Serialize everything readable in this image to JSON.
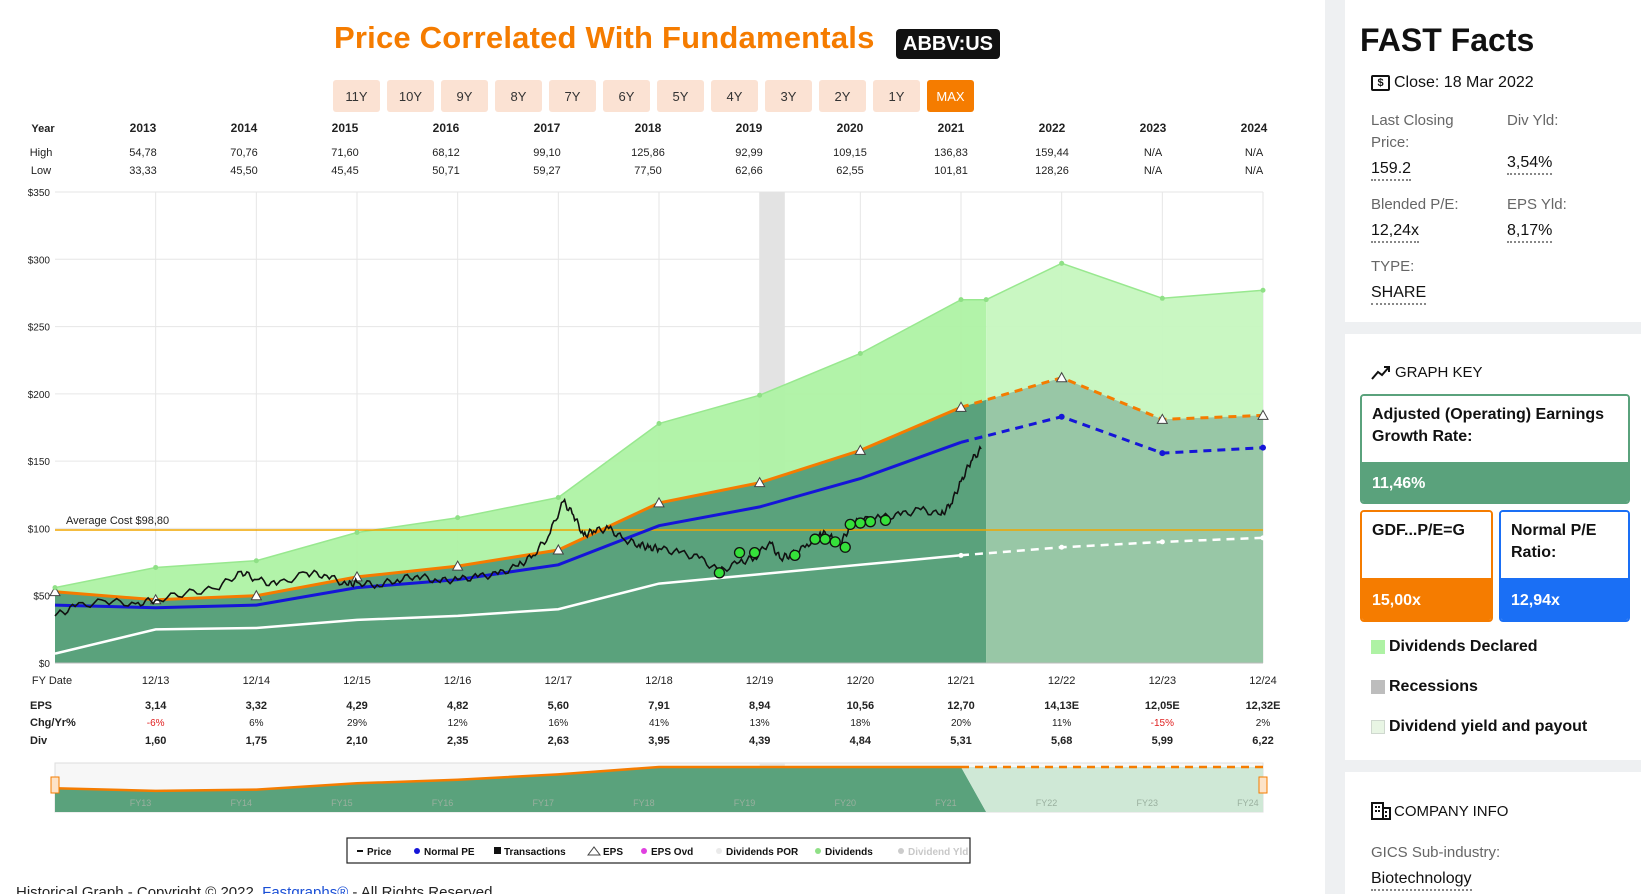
{
  "main": {
    "title": "Price Correlated With Fundamentals",
    "ticker": "ABBV:US",
    "ranges": [
      "11Y",
      "10Y",
      "9Y",
      "8Y",
      "7Y",
      "6Y",
      "5Y",
      "4Y",
      "3Y",
      "2Y",
      "1Y",
      "MAX"
    ],
    "active_range": "MAX",
    "average_cost_label": "Average Cost $98,80",
    "copyright_prefix": "Historical Graph - Copyright © 2022, ",
    "copyright_link": "Fastgraphs®",
    "copyright_suffix": " - All Rights Reserved"
  },
  "chart_data": {
    "type": "area",
    "row_labels": {
      "year": "Year",
      "high": "High",
      "low": "Low",
      "fy": "FY Date",
      "eps": "EPS",
      "chg": "Chg/Yr%",
      "div": "Div"
    },
    "years": [
      "2013",
      "2014",
      "2015",
      "2016",
      "2017",
      "2018",
      "2019",
      "2020",
      "2021",
      "2022",
      "2023",
      "2024"
    ],
    "high": [
      "54,78",
      "70,76",
      "71,60",
      "68,12",
      "99,10",
      "125,86",
      "92,99",
      "109,15",
      "136,83",
      "159,44",
      "N/A",
      "N/A"
    ],
    "low": [
      "33,33",
      "45,50",
      "45,45",
      "50,71",
      "59,27",
      "77,50",
      "62,66",
      "62,55",
      "101,81",
      "128,26",
      "N/A",
      "N/A"
    ],
    "fy_dates": [
      "12/13",
      "12/14",
      "12/15",
      "12/16",
      "12/17",
      "12/18",
      "12/19",
      "12/20",
      "12/21",
      "12/22",
      "12/23",
      "12/24"
    ],
    "eps": [
      "3,14",
      "3,32",
      "4,29",
      "4,82",
      "5,60",
      "7,91",
      "8,94",
      "10,56",
      "12,70",
      "14,13E",
      "12,05E",
      "12,32E"
    ],
    "chg_yr": [
      "-6%",
      "6%",
      "29%",
      "12%",
      "16%",
      "41%",
      "13%",
      "18%",
      "20%",
      "11%",
      "-15%",
      "2%"
    ],
    "div": [
      "1,60",
      "1,75",
      "2,10",
      "2,35",
      "2,63",
      "3,95",
      "4,39",
      "4,84",
      "5,31",
      "5,68",
      "5,99",
      "6,22"
    ],
    "y_ticks": [
      "$0",
      "$50",
      "$100",
      "$150",
      "$200",
      "$250",
      "$300",
      "$350"
    ],
    "ylim": [
      0,
      350
    ],
    "average_cost": 98.8,
    "recession": [
      2020.0,
      2020.25
    ],
    "dividends_top": [
      [
        2013.0,
        56
      ],
      [
        2014.0,
        71
      ],
      [
        2015.0,
        76
      ],
      [
        2016.0,
        97
      ],
      [
        2017.0,
        108
      ],
      [
        2018.0,
        123
      ],
      [
        2019.0,
        178
      ],
      [
        2020.0,
        199
      ],
      [
        2021.0,
        230
      ],
      [
        2022.0,
        270
      ],
      [
        2022.25,
        270
      ],
      [
        2023.0,
        297
      ],
      [
        2024.0,
        271
      ],
      [
        2025.0,
        277
      ]
    ],
    "eps_line": [
      [
        2013.0,
        53
      ],
      [
        2014.0,
        47
      ],
      [
        2015.0,
        50
      ],
      [
        2016.0,
        64
      ],
      [
        2017.0,
        72
      ],
      [
        2018.0,
        84
      ],
      [
        2019.0,
        119
      ],
      [
        2020.0,
        134
      ],
      [
        2021.0,
        158
      ],
      [
        2022.0,
        190
      ],
      [
        2023.0,
        212
      ],
      [
        2024.0,
        181
      ],
      [
        2025.0,
        184
      ]
    ],
    "normal_pe_line": [
      [
        2013.0,
        43
      ],
      [
        2014.0,
        41
      ],
      [
        2015.0,
        43
      ],
      [
        2016.0,
        56
      ],
      [
        2017.0,
        62
      ],
      [
        2018.0,
        73
      ],
      [
        2019.0,
        102
      ],
      [
        2020.0,
        116
      ],
      [
        2021.0,
        137
      ],
      [
        2022.0,
        164
      ],
      [
        2023.0,
        183
      ],
      [
        2024.0,
        156
      ],
      [
        2025.0,
        160
      ]
    ],
    "div_yield_line": [
      [
        2013.0,
        7
      ],
      [
        2014.0,
        25
      ],
      [
        2015.0,
        26
      ],
      [
        2016.0,
        32
      ],
      [
        2017.0,
        35
      ],
      [
        2018.0,
        40
      ],
      [
        2019.0,
        59
      ],
      [
        2020.0,
        66
      ],
      [
        2021.0,
        73
      ],
      [
        2022.0,
        80
      ],
      [
        2023.0,
        86
      ],
      [
        2024.0,
        90
      ],
      [
        2025.0,
        93
      ]
    ],
    "price_line": [
      [
        2013.0,
        35
      ],
      [
        2013.2,
        42
      ],
      [
        2013.5,
        46
      ],
      [
        2013.8,
        44
      ],
      [
        2014.0,
        47
      ],
      [
        2014.3,
        52
      ],
      [
        2014.6,
        55
      ],
      [
        2014.85,
        68
      ],
      [
        2015.0,
        62
      ],
      [
        2015.2,
        58
      ],
      [
        2015.5,
        67
      ],
      [
        2015.7,
        65
      ],
      [
        2015.9,
        58
      ],
      [
        2016.0,
        60
      ],
      [
        2016.2,
        58
      ],
      [
        2016.4,
        62
      ],
      [
        2016.6,
        65
      ],
      [
        2016.8,
        61
      ],
      [
        2017.0,
        62
      ],
      [
        2017.2,
        64
      ],
      [
        2017.4,
        66
      ],
      [
        2017.6,
        72
      ],
      [
        2017.75,
        80
      ],
      [
        2017.9,
        94
      ],
      [
        2018.05,
        120
      ],
      [
        2018.15,
        110
      ],
      [
        2018.25,
        95
      ],
      [
        2018.35,
        98
      ],
      [
        2018.5,
        100
      ],
      [
        2018.65,
        92
      ],
      [
        2018.8,
        88
      ],
      [
        2018.9,
        86
      ],
      [
        2019.0,
        85
      ],
      [
        2019.2,
        82
      ],
      [
        2019.4,
        78
      ],
      [
        2019.6,
        68
      ],
      [
        2019.8,
        75
      ],
      [
        2019.95,
        78
      ],
      [
        2020.1,
        90
      ],
      [
        2020.2,
        78
      ],
      [
        2020.3,
        80
      ],
      [
        2020.45,
        86
      ],
      [
        2020.6,
        97
      ],
      [
        2020.7,
        94
      ],
      [
        2020.8,
        88
      ],
      [
        2020.9,
        102
      ],
      [
        2021.0,
        106
      ],
      [
        2021.2,
        108
      ],
      [
        2021.4,
        110
      ],
      [
        2021.6,
        114
      ],
      [
        2021.8,
        110
      ],
      [
        2021.9,
        118
      ],
      [
        2022.0,
        135
      ],
      [
        2022.1,
        150
      ],
      [
        2022.2,
        159
      ]
    ],
    "eps_markers": [
      2013.0,
      2014.0,
      2015.0,
      2016.0,
      2017.0,
      2018.0,
      2019.0,
      2020.0,
      2021.0,
      2022.0,
      2023.0,
      2024.0,
      2025.0
    ],
    "transactions": [
      [
        2019.6,
        67
      ],
      [
        2019.8,
        82
      ],
      [
        2019.95,
        82
      ],
      [
        2020.35,
        80
      ],
      [
        2020.55,
        92
      ],
      [
        2020.65,
        92
      ],
      [
        2020.75,
        90
      ],
      [
        2020.85,
        86
      ],
      [
        2020.9,
        103
      ],
      [
        2021.0,
        104
      ],
      [
        2021.1,
        105
      ],
      [
        2021.25,
        106
      ]
    ],
    "legend": [
      "Price",
      "Normal PE",
      "Transactions",
      "EPS",
      "EPS Ovd",
      "Dividends POR",
      "Dividends",
      "Dividend Yld"
    ],
    "mini_labels": [
      "FY13",
      "FY14",
      "FY15",
      "FY16",
      "FY17",
      "FY18",
      "FY19",
      "FY20",
      "FY21",
      "FY22",
      "FY23",
      "FY24"
    ]
  },
  "side": {
    "fast_title": "FAST Facts",
    "close_label": "Close: 18 Mar 2022",
    "last_closing_label": "Last Closing Price:",
    "last_closing_value": "159.2",
    "div_yld_label": "Div Yld:",
    "div_yld_value": "3,54%",
    "blended_pe_label": "Blended P/E:",
    "blended_pe_value": "12,24x",
    "eps_yld_label": "EPS Yld:",
    "eps_yld_value": "8,17%",
    "type_label": "TYPE:",
    "type_value": "SHARE",
    "graph_key_title": "GRAPH KEY",
    "growth_label": "Adjusted (Operating) Earnings Growth Rate:",
    "growth_value": "11,46%",
    "gdf_label": "GDF...P/E=G",
    "gdf_value": "15,00x",
    "npe_label": "Normal P/E Ratio:",
    "npe_value": "12,94x",
    "legend_dividends": "Dividends Declared",
    "legend_recessions": "Recessions",
    "legend_yield": "Dividend yield and payout",
    "company_title": "COMPANY INFO",
    "gics_label": "GICS Sub-industry:",
    "gics_value": "Biotechnology",
    "colors": {
      "orange": "#f57c00",
      "green": "#5aa27c",
      "blue": "#1a6ff5",
      "light_green": "#aef2a4"
    }
  }
}
